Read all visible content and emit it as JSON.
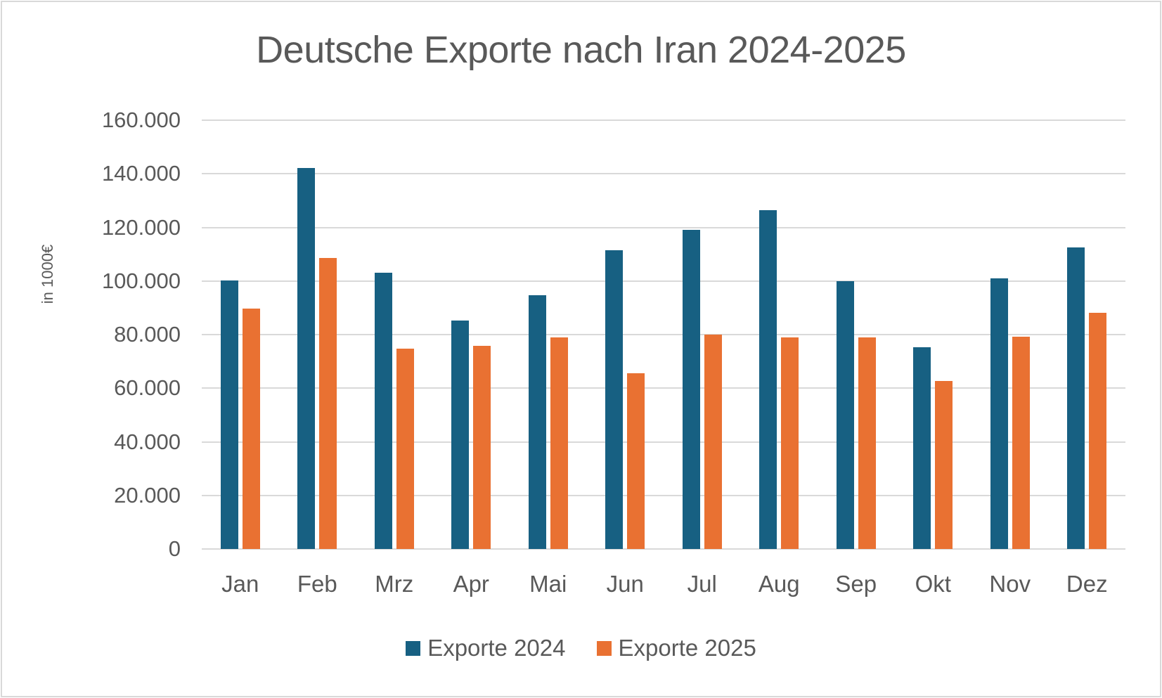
{
  "chart_data": {
    "type": "bar",
    "title": "Deutsche Exporte nach Iran 2024-2025",
    "xlabel": "",
    "ylabel": "in 1000€",
    "ylim": [
      0,
      160000
    ],
    "yticks": [
      "0",
      "20.000",
      "40.000",
      "60.000",
      "80.000",
      "100.000",
      "120.000",
      "140.000",
      "160.000"
    ],
    "grid": true,
    "legend_position": "bottom",
    "categories": [
      "Jan",
      "Feb",
      "Mrz",
      "Apr",
      "Mai",
      "Jun",
      "Jul",
      "Aug",
      "Sep",
      "Okt",
      "Nov",
      "Dez"
    ],
    "series": [
      {
        "name": "Exporte 2024",
        "color": "#176082",
        "values": [
          100100,
          142100,
          103000,
          85200,
          94700,
          111600,
          119200,
          126300,
          100000,
          75200,
          101000,
          112500
        ]
      },
      {
        "name": "Exporte 2025",
        "color": "#e97132",
        "values": [
          89600,
          108600,
          74800,
          75800,
          79000,
          65500,
          80000,
          79000,
          79000,
          62600,
          79100,
          88100
        ]
      }
    ]
  }
}
